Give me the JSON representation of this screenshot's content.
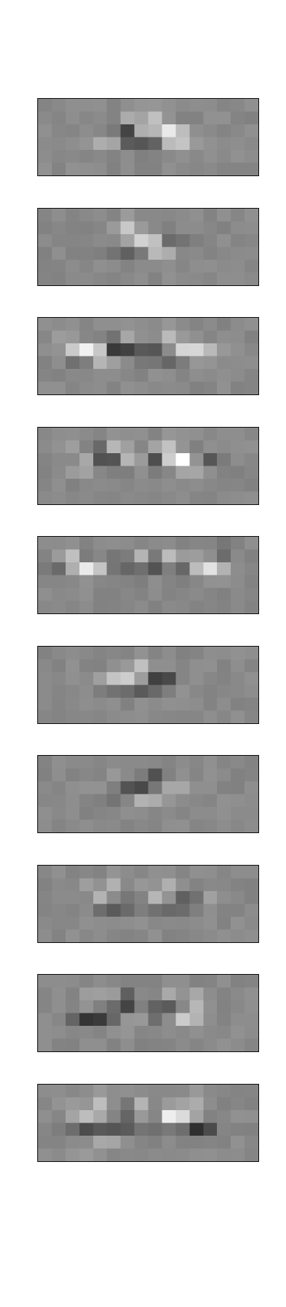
{
  "figure": {
    "panel_count": 10,
    "grid": {
      "columns": 16,
      "rows": 6
    },
    "background_gray": "#898989",
    "border_color": "#000000"
  },
  "panels": [
    {
      "id": "filter-1",
      "blobs": [
        {
          "c": 6.3,
          "r": 2.8,
          "sx": 0.5,
          "sy": 0.5,
          "a": -0.9,
          "rot": 0
        },
        {
          "c": 6.8,
          "r": 1.6,
          "sx": 0.5,
          "sy": 0.5,
          "a": 0.45,
          "rot": 0
        },
        {
          "c": 8.5,
          "r": 2.9,
          "sx": 0.45,
          "sy": 0.45,
          "a": -0.75,
          "rot": 0
        },
        {
          "c": 8.4,
          "r": 1.3,
          "sx": 0.45,
          "sy": 0.5,
          "a": 0.5,
          "rot": 0
        },
        {
          "c": 9.0,
          "r": 2.5,
          "sx": 1.1,
          "sy": 0.45,
          "a": 0.9,
          "rot": 0.4
        },
        {
          "c": 5.0,
          "r": 3.4,
          "sx": 0.8,
          "sy": 0.4,
          "a": 0.45,
          "rot": 0
        },
        {
          "c": 10.0,
          "r": 3.4,
          "sx": 0.8,
          "sy": 0.4,
          "a": 0.5,
          "rot": 0
        },
        {
          "c": 7.5,
          "r": 3.8,
          "sx": 0.6,
          "sy": 0.35,
          "a": -0.5,
          "rot": 0
        }
      ]
    },
    {
      "id": "filter-2",
      "blobs": [
        {
          "c": 6.5,
          "r": 3.0,
          "sx": 1.0,
          "sy": 0.45,
          "a": -0.7,
          "rot": 0.35
        },
        {
          "c": 6.6,
          "r": 1.6,
          "sx": 0.45,
          "sy": 0.7,
          "a": 0.55,
          "rot": 0
        },
        {
          "c": 8.2,
          "r": 2.7,
          "sx": 1.2,
          "sy": 0.45,
          "a": 0.95,
          "rot": 0.45
        },
        {
          "c": 9.5,
          "r": 2.5,
          "sx": 0.9,
          "sy": 0.4,
          "a": -0.6,
          "rot": 0.3
        },
        {
          "c": 5.3,
          "r": 2.2,
          "sx": 0.5,
          "sy": 0.5,
          "a": 0.3,
          "rot": 0
        },
        {
          "c": 8.5,
          "r": 3.5,
          "sx": 0.7,
          "sy": 0.35,
          "a": 0.35,
          "rot": 0
        }
      ]
    },
    {
      "id": "filter-3",
      "blobs": [
        {
          "c": 3.2,
          "r": 2.6,
          "sx": 0.7,
          "sy": 0.6,
          "a": 0.55,
          "rot": 0.6
        },
        {
          "c": 4.2,
          "r": 2.8,
          "sx": 0.9,
          "sy": 0.45,
          "a": 0.75,
          "rot": 0.4
        },
        {
          "c": 5.5,
          "r": 2.0,
          "sx": 0.45,
          "sy": 0.6,
          "a": -0.55,
          "rot": 0
        },
        {
          "c": 6.5,
          "r": 2.6,
          "sx": 0.9,
          "sy": 0.45,
          "a": -0.7,
          "rot": 0.4
        },
        {
          "c": 6.1,
          "r": 1.5,
          "sx": 0.45,
          "sy": 0.6,
          "a": 0.45,
          "rot": 0
        },
        {
          "c": 9.0,
          "r": 2.6,
          "sx": 0.5,
          "sy": 0.45,
          "a": -0.75,
          "rot": 0
        },
        {
          "c": 9.5,
          "r": 1.6,
          "sx": 0.4,
          "sy": 0.6,
          "a": 0.4,
          "rot": 0
        },
        {
          "c": 10.6,
          "r": 2.5,
          "sx": 1.0,
          "sy": 0.45,
          "a": 0.7,
          "rot": 0.45
        },
        {
          "c": 12.3,
          "r": 2.8,
          "sx": 0.7,
          "sy": 0.45,
          "a": 0.45,
          "rot": 0.3
        },
        {
          "c": 3.2,
          "r": 3.3,
          "sx": 0.7,
          "sy": 0.35,
          "a": -0.4,
          "rot": 0
        },
        {
          "c": 9.8,
          "r": 3.3,
          "sx": 0.6,
          "sy": 0.35,
          "a": -0.4,
          "rot": 0
        }
      ]
    },
    {
      "id": "filter-4",
      "blobs": [
        {
          "c": 3.5,
          "r": 2.3,
          "sx": 0.6,
          "sy": 0.6,
          "a": 0.4,
          "rot": 0.5
        },
        {
          "c": 4.3,
          "r": 2.0,
          "sx": 0.45,
          "sy": 0.5,
          "a": -0.45,
          "rot": 0
        },
        {
          "c": 5.2,
          "r": 2.6,
          "sx": 0.6,
          "sy": 0.5,
          "a": -0.6,
          "rot": 0.3
        },
        {
          "c": 5.8,
          "r": 1.6,
          "sx": 0.4,
          "sy": 0.6,
          "a": 0.4,
          "rot": 0
        },
        {
          "c": 6.8,
          "r": 2.4,
          "sx": 0.5,
          "sy": 0.5,
          "a": 0.45,
          "rot": 0.4
        },
        {
          "c": 8.6,
          "r": 2.6,
          "sx": 0.5,
          "sy": 0.5,
          "a": -0.6,
          "rot": 0
        },
        {
          "c": 9.6,
          "r": 2.0,
          "sx": 0.6,
          "sy": 0.55,
          "a": 0.6,
          "rot": 0.5
        },
        {
          "c": 10.6,
          "r": 2.8,
          "sx": 0.9,
          "sy": 0.45,
          "a": 0.9,
          "rot": 0.5
        },
        {
          "c": 9.8,
          "r": 1.2,
          "sx": 0.45,
          "sy": 0.5,
          "a": 0.35,
          "rot": 0
        },
        {
          "c": 12.3,
          "r": 2.6,
          "sx": 0.8,
          "sy": 0.45,
          "a": -0.45,
          "rot": 0.3
        },
        {
          "c": 3.0,
          "r": 3.3,
          "sx": 0.5,
          "sy": 0.35,
          "a": 0.3,
          "rot": 0
        }
      ]
    },
    {
      "id": "filter-5",
      "blobs": [
        {
          "c": 1.3,
          "r": 2.2,
          "sx": 0.45,
          "sy": 0.45,
          "a": -0.5,
          "rot": 0
        },
        {
          "c": 2.1,
          "r": 1.4,
          "sx": 0.45,
          "sy": 0.5,
          "a": 0.45,
          "rot": 0
        },
        {
          "c": 3.4,
          "r": 2.3,
          "sx": 0.9,
          "sy": 0.5,
          "a": 0.85,
          "rot": 0.5
        },
        {
          "c": 4.0,
          "r": 1.3,
          "sx": 0.45,
          "sy": 0.45,
          "a": -0.45,
          "rot": 0
        },
        {
          "c": 5.6,
          "r": 2.0,
          "sx": 0.5,
          "sy": 0.5,
          "a": -0.55,
          "rot": 0
        },
        {
          "c": 5.0,
          "r": 1.5,
          "sx": 0.4,
          "sy": 0.5,
          "a": 0.4,
          "rot": 0
        },
        {
          "c": 7.0,
          "r": 2.5,
          "sx": 0.45,
          "sy": 0.45,
          "a": -0.45,
          "rot": 0
        },
        {
          "c": 7.4,
          "r": 1.5,
          "sx": 0.4,
          "sy": 0.45,
          "a": 0.35,
          "rot": 0
        },
        {
          "c": 8.5,
          "r": 2.3,
          "sx": 0.45,
          "sy": 0.5,
          "a": -0.45,
          "rot": 0
        },
        {
          "c": 9.6,
          "r": 1.4,
          "sx": 0.4,
          "sy": 0.5,
          "a": 0.4,
          "rot": 0
        },
        {
          "c": 10.5,
          "r": 2.5,
          "sx": 0.5,
          "sy": 0.45,
          "a": -0.45,
          "rot": 0
        },
        {
          "c": 11.5,
          "r": 2.2,
          "sx": 0.8,
          "sy": 0.45,
          "a": 0.5,
          "rot": 0.4
        },
        {
          "c": 12.8,
          "r": 2.4,
          "sx": 0.8,
          "sy": 0.45,
          "a": 0.55,
          "rot": 0.2
        },
        {
          "c": 13.5,
          "r": 1.2,
          "sx": 0.45,
          "sy": 0.45,
          "a": -0.35,
          "rot": 0
        }
      ]
    },
    {
      "id": "filter-6",
      "blobs": [
        {
          "c": 6.6,
          "r": 2.4,
          "sx": 1.3,
          "sy": 0.45,
          "a": 0.9,
          "rot": -0.45
        },
        {
          "c": 7.4,
          "r": 1.4,
          "sx": 0.5,
          "sy": 0.6,
          "a": 0.35,
          "rot": 0
        },
        {
          "c": 7.8,
          "r": 2.9,
          "sx": 1.3,
          "sy": 0.45,
          "a": -0.95,
          "rot": -0.3
        },
        {
          "c": 9.0,
          "r": 2.6,
          "sx": 0.6,
          "sy": 0.45,
          "a": -0.55,
          "rot": 0
        },
        {
          "c": 10.3,
          "r": 3.0,
          "sx": 1.0,
          "sy": 0.45,
          "a": 0.25,
          "rot": 0
        },
        {
          "c": 5.0,
          "r": 3.1,
          "sx": 0.6,
          "sy": 0.35,
          "a": -0.25,
          "rot": 0
        }
      ]
    },
    {
      "id": "filter-7",
      "blobs": [
        {
          "c": 6.0,
          "r": 2.3,
          "sx": 1.0,
          "sy": 0.45,
          "a": 0.6,
          "rot": -0.3
        },
        {
          "c": 7.2,
          "r": 2.4,
          "sx": 1.2,
          "sy": 0.45,
          "a": -0.95,
          "rot": -0.4
        },
        {
          "c": 8.6,
          "r": 1.8,
          "sx": 0.5,
          "sy": 0.6,
          "a": -0.4,
          "rot": 0
        },
        {
          "c": 8.6,
          "r": 3.0,
          "sx": 1.3,
          "sy": 0.45,
          "a": 0.9,
          "rot": -0.2
        },
        {
          "c": 5.5,
          "r": 3.0,
          "sx": 0.9,
          "sy": 0.4,
          "a": -0.45,
          "rot": -0.2
        },
        {
          "c": 9.2,
          "r": 3.6,
          "sx": 0.8,
          "sy": 0.35,
          "a": -0.3,
          "rot": 0
        }
      ]
    },
    {
      "id": "filter-8",
      "blobs": [
        {
          "c": 4.6,
          "r": 2.4,
          "sx": 0.6,
          "sy": 0.5,
          "a": 0.65,
          "rot": 0.5
        },
        {
          "c": 5.4,
          "r": 1.6,
          "sx": 0.45,
          "sy": 0.6,
          "a": 0.4,
          "rot": 0
        },
        {
          "c": 5.4,
          "r": 3.0,
          "sx": 1.0,
          "sy": 0.45,
          "a": -0.75,
          "rot": 0.1
        },
        {
          "c": 8.6,
          "r": 2.4,
          "sx": 0.6,
          "sy": 0.5,
          "a": 0.7,
          "rot": 0.5
        },
        {
          "c": 9.5,
          "r": 1.7,
          "sx": 0.45,
          "sy": 0.6,
          "a": 0.35,
          "rot": 0
        },
        {
          "c": 9.6,
          "r": 3.0,
          "sx": 1.0,
          "sy": 0.45,
          "a": -0.75,
          "rot": 0.1
        },
        {
          "c": 11.0,
          "r": 2.4,
          "sx": 0.4,
          "sy": 0.5,
          "a": -0.35,
          "rot": 0
        },
        {
          "c": 12.4,
          "r": 2.8,
          "sx": 0.6,
          "sy": 0.45,
          "a": 0.25,
          "rot": 0
        }
      ]
    },
    {
      "id": "filter-9",
      "blobs": [
        {
          "c": 3.2,
          "r": 3.4,
          "sx": 0.6,
          "sy": 0.4,
          "a": -0.45,
          "rot": 0
        },
        {
          "c": 4.5,
          "r": 3.2,
          "sx": 0.9,
          "sy": 0.45,
          "a": -0.7,
          "rot": -0.3
        },
        {
          "c": 4.0,
          "r": 2.1,
          "sx": 0.5,
          "sy": 0.5,
          "a": 0.35,
          "rot": 0
        },
        {
          "c": 5.4,
          "r": 2.1,
          "sx": 0.45,
          "sy": 0.5,
          "a": 0.4,
          "rot": 0
        },
        {
          "c": 6.0,
          "r": 2.8,
          "sx": 0.7,
          "sy": 0.45,
          "a": -0.65,
          "rot": -0.4
        },
        {
          "c": 6.3,
          "r": 1.5,
          "sx": 0.4,
          "sy": 0.5,
          "a": -0.4,
          "rot": 0
        },
        {
          "c": 8.6,
          "r": 3.0,
          "sx": 0.5,
          "sy": 0.45,
          "a": -0.65,
          "rot": 0
        },
        {
          "c": 9.8,
          "r": 2.6,
          "sx": 0.5,
          "sy": 0.45,
          "a": -0.55,
          "rot": 0
        },
        {
          "c": 9.5,
          "r": 1.6,
          "sx": 0.45,
          "sy": 0.5,
          "a": 0.35,
          "rot": 0
        },
        {
          "c": 11.0,
          "r": 3.2,
          "sx": 0.8,
          "sy": 0.45,
          "a": 0.7,
          "rot": -0.3
        },
        {
          "c": 11.5,
          "r": 2.0,
          "sx": 0.45,
          "sy": 0.5,
          "a": 0.35,
          "rot": 0
        },
        {
          "c": 7.3,
          "r": 3.8,
          "sx": 1.4,
          "sy": 0.35,
          "a": 0.3,
          "rot": 0
        }
      ]
    },
    {
      "id": "filter-10",
      "blobs": [
        {
          "c": 3.4,
          "r": 2.4,
          "sx": 0.8,
          "sy": 0.5,
          "a": 0.55,
          "rot": 0.3
        },
        {
          "c": 4.5,
          "r": 1.5,
          "sx": 0.45,
          "sy": 0.6,
          "a": 0.45,
          "rot": 0
        },
        {
          "c": 3.5,
          "r": 3.4,
          "sx": 0.9,
          "sy": 0.4,
          "a": -0.55,
          "rot": 0
        },
        {
          "c": 5.6,
          "r": 3.2,
          "sx": 0.7,
          "sy": 0.4,
          "a": -0.4,
          "rot": 0
        },
        {
          "c": 6.5,
          "r": 2.2,
          "sx": 0.5,
          "sy": 0.5,
          "a": -0.4,
          "rot": 0
        },
        {
          "c": 7.4,
          "r": 2.0,
          "sx": 0.45,
          "sy": 0.6,
          "a": 0.5,
          "rot": 0
        },
        {
          "c": 8.2,
          "r": 2.4,
          "sx": 0.5,
          "sy": 0.45,
          "a": -0.4,
          "rot": 0
        },
        {
          "c": 9.2,
          "r": 2.2,
          "sx": 0.5,
          "sy": 0.5,
          "a": 0.45,
          "rot": 0
        },
        {
          "c": 10.3,
          "r": 2.6,
          "sx": 0.9,
          "sy": 0.45,
          "a": 0.75,
          "rot": 0.3
        },
        {
          "c": 11.0,
          "r": 1.4,
          "sx": 0.45,
          "sy": 0.6,
          "a": 0.45,
          "rot": 0
        },
        {
          "c": 11.4,
          "r": 3.3,
          "sx": 0.6,
          "sy": 0.4,
          "a": -0.8,
          "rot": 0
        },
        {
          "c": 12.4,
          "r": 3.2,
          "sx": 0.5,
          "sy": 0.4,
          "a": -0.45,
          "rot": 0
        },
        {
          "c": 7.5,
          "r": 3.6,
          "sx": 2.0,
          "sy": 0.35,
          "a": -0.25,
          "rot": 0
        },
        {
          "c": 5.0,
          "r": 4.5,
          "sx": 0.7,
          "sy": 0.35,
          "a": 0.3,
          "rot": 0
        },
        {
          "c": 3.0,
          "r": 5.3,
          "sx": 0.4,
          "sy": 0.4,
          "a": 0.35,
          "rot": 0
        }
      ]
    }
  ]
}
